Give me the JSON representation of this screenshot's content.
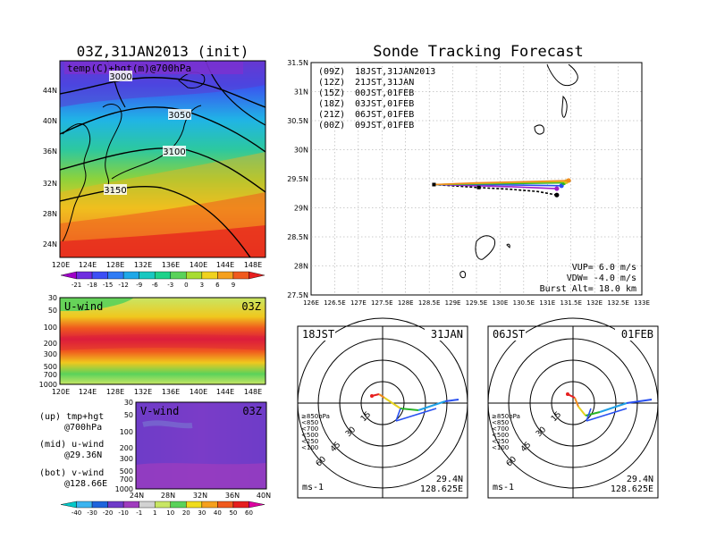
{
  "left": {
    "title": "03Z,31JAN2013 (init)",
    "map_label": "temp(C)+hgt(m)@700hPa",
    "lat_labels": [
      "44N",
      "40N",
      "36N",
      "32N",
      "28N",
      "24N"
    ],
    "lon_labels": [
      "120E",
      "124E",
      "128E",
      "132E",
      "136E",
      "140E",
      "144E",
      "148E"
    ],
    "contours": [
      "3000",
      "3050",
      "3100",
      "3150"
    ],
    "temp_scale": [
      "-21",
      "-18",
      "-15",
      "-12",
      "-9",
      "-6",
      "-3",
      "0",
      "3",
      "6",
      "9"
    ],
    "temp_colors": [
      "#a000c8",
      "#6e2de0",
      "#3c4ef5",
      "#2f7bf5",
      "#1fa8e8",
      "#19c8c0",
      "#1ed28a",
      "#5ad25a",
      "#a8dc32",
      "#f0d21e",
      "#f5a01e",
      "#f05a1e",
      "#e61e1e"
    ],
    "uwind": {
      "label": "U-wind",
      "time": "03Z",
      "p_labels": [
        "30",
        "50",
        "100",
        "200",
        "300",
        "500",
        "700",
        "1000"
      ],
      "lon_labels": [
        "120E",
        "124E",
        "128E",
        "132E",
        "136E",
        "140E",
        "144E",
        "148E"
      ]
    },
    "vwind": {
      "label": "V-wind",
      "time": "03Z",
      "p_labels": [
        "30",
        "50",
        "100",
        "200",
        "300",
        "500",
        "700",
        "1000"
      ],
      "lat_labels": [
        "24N",
        "28N",
        "32N",
        "36N",
        "40N"
      ]
    },
    "notes": [
      {
        "a": "(up) tmp+hgt",
        "b": "@700hPa"
      },
      {
        "a": "(mid) u-wind",
        "b": "@29.36N"
      },
      {
        "a": "(bot) v-wind",
        "b": "@128.66E"
      }
    ],
    "wind_scale": [
      "-40",
      "-30",
      "-20",
      "-10",
      "-1",
      "1",
      "10",
      "20",
      "30",
      "40",
      "50",
      "60"
    ],
    "wind_colors": [
      "#00c8c8",
      "#3cb4f0",
      "#1e64dc",
      "#6e3cc8",
      "#a03cbe",
      "#d2d2d2",
      "#c8e664",
      "#5ad25a",
      "#f0dc1e",
      "#f5a01e",
      "#f05a1e",
      "#e61e1e",
      "#dc00a0"
    ]
  },
  "right": {
    "title": "Sonde Tracking Forecast",
    "lat_labels": [
      "31.5N",
      "31N",
      "30.5N",
      "30N",
      "29.5N",
      "29N",
      "28.5N",
      "28N",
      "27.5N"
    ],
    "lon_labels": [
      "126E",
      "126.5E",
      "127E",
      "127.5E",
      "128E",
      "128.5E",
      "129E",
      "129.5E",
      "130E",
      "130.5E",
      "131E",
      "131.5E",
      "132E",
      "132.5E",
      "133E"
    ],
    "launches": [
      {
        "run": "(09Z)",
        "time": "18JST,31JAN2013",
        "color": "#000000"
      },
      {
        "run": "(12Z)",
        "time": "21JST,31JAN",
        "color": "#a020c8"
      },
      {
        "run": "(15Z)",
        "time": "00JST,01FEB",
        "color": "#2850f0"
      },
      {
        "run": "(18Z)",
        "time": "03JST,01FEB",
        "color": "#28b428"
      },
      {
        "run": "(21Z)",
        "time": "06JST,01FEB",
        "color": "#d2c81e"
      },
      {
        "run": "(00Z)",
        "time": "09JST,01FEB",
        "color": "#f08c1e"
      }
    ],
    "params": [
      "VUP=  6.0 m/s",
      "VDW= -4.0 m/s",
      "Burst Alt= 18.0 km"
    ]
  },
  "hodographs": [
    {
      "time": "18JST",
      "date": "31JAN",
      "lat": "29.4N",
      "lon": "128.625E",
      "unit": "ms-1"
    },
    {
      "time": "06JST",
      "date": "01FEB",
      "lat": "29.4N",
      "lon": "128.625E",
      "unit": "ms-1"
    }
  ],
  "hodo_rings": [
    "15",
    "30",
    "45",
    "60"
  ],
  "hodo_legend": [
    {
      "label": "≥850hPa",
      "color": "#e61e1e"
    },
    {
      "label": "<850",
      "color": "#f08c1e"
    },
    {
      "label": "<700",
      "color": "#e6d21e"
    },
    {
      "label": "<500",
      "color": "#28b428"
    },
    {
      "label": "<250",
      "color": "#1ea0e6"
    },
    {
      "label": "<100",
      "color": "#2850f0"
    }
  ],
  "chart_data": [
    {
      "type": "line",
      "title": "Sonde Tracking Forecast",
      "xlabel": "",
      "ylabel": "",
      "xlim": [
        126,
        133
      ],
      "ylim": [
        27.5,
        31.5
      ],
      "grid": true,
      "legend_position": "top-left",
      "series": [
        {
          "name": "(09Z) 18JST,31JAN2013",
          "x": [
            128.6,
            129.5,
            130.2,
            130.8,
            131.2
          ],
          "y": [
            29.4,
            29.35,
            29.32,
            29.28,
            29.22
          ]
        },
        {
          "name": "(12Z) 21JST,31JAN",
          "x": [
            128.6,
            129.5,
            130.3,
            131.2
          ],
          "y": [
            29.4,
            29.38,
            29.36,
            29.33
          ]
        },
        {
          "name": "(15Z) 00JST,01FEB",
          "x": [
            128.6,
            129.5,
            130.4,
            131.3
          ],
          "y": [
            29.4,
            29.4,
            29.39,
            29.38
          ]
        },
        {
          "name": "(18Z) 03JST,01FEB",
          "x": [
            128.6,
            129.5,
            130.5,
            131.35
          ],
          "y": [
            29.4,
            29.41,
            29.42,
            29.43
          ]
        },
        {
          "name": "(21Z) 06JST,01FEB",
          "x": [
            128.6,
            129.5,
            130.5,
            131.4
          ],
          "y": [
            29.4,
            29.42,
            29.44,
            29.45
          ]
        },
        {
          "name": "(00Z) 09JST,01FEB",
          "x": [
            128.6,
            129.5,
            130.5,
            131.45
          ],
          "y": [
            29.4,
            29.43,
            29.45,
            29.47
          ]
        }
      ]
    }
  ]
}
